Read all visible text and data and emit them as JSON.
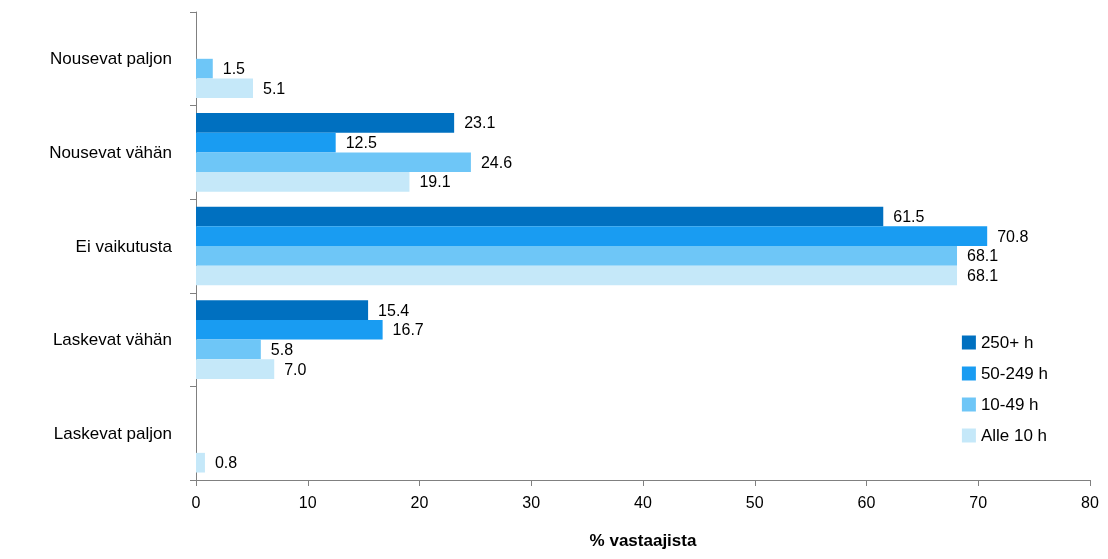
{
  "chart_data": {
    "type": "bar",
    "orientation": "horizontal",
    "xlabel": "% vastaajista",
    "categories": [
      "Nousevat paljon",
      "Nousevat vähän",
      "Ei vaikutusta",
      "Laskevat vähän",
      "Laskevat paljon"
    ],
    "series": [
      {
        "name": "250+ h",
        "color": "#0070c0",
        "values": [
          null,
          23.1,
          61.5,
          15.4,
          null
        ],
        "value_labels": [
          null,
          "23.1",
          "61.5",
          "15.4",
          null
        ]
      },
      {
        "name": "50-249 h",
        "color": "#199cf2",
        "values": [
          null,
          12.5,
          70.8,
          16.7,
          null
        ],
        "value_labels": [
          null,
          "12.5",
          "70.8",
          "16.7",
          null
        ]
      },
      {
        "name": "10-49 h",
        "color": "#6ec6f7",
        "values": [
          1.5,
          24.6,
          68.1,
          5.8,
          null
        ],
        "value_labels": [
          "1.5",
          "24.6",
          "68.1",
          "5.8",
          null
        ]
      },
      {
        "name": "Alle 10 h",
        "color": "#c5e8f9",
        "values": [
          5.1,
          19.1,
          68.1,
          7.0,
          0.8
        ],
        "value_labels": [
          "5.1",
          "19.1",
          "68.1",
          "7.0",
          "0.8"
        ]
      }
    ],
    "xlim": [
      0,
      80
    ],
    "xticks": [
      0,
      10,
      20,
      30,
      40,
      50,
      60,
      70,
      80
    ],
    "grid": false,
    "legend": "bottom right"
  }
}
